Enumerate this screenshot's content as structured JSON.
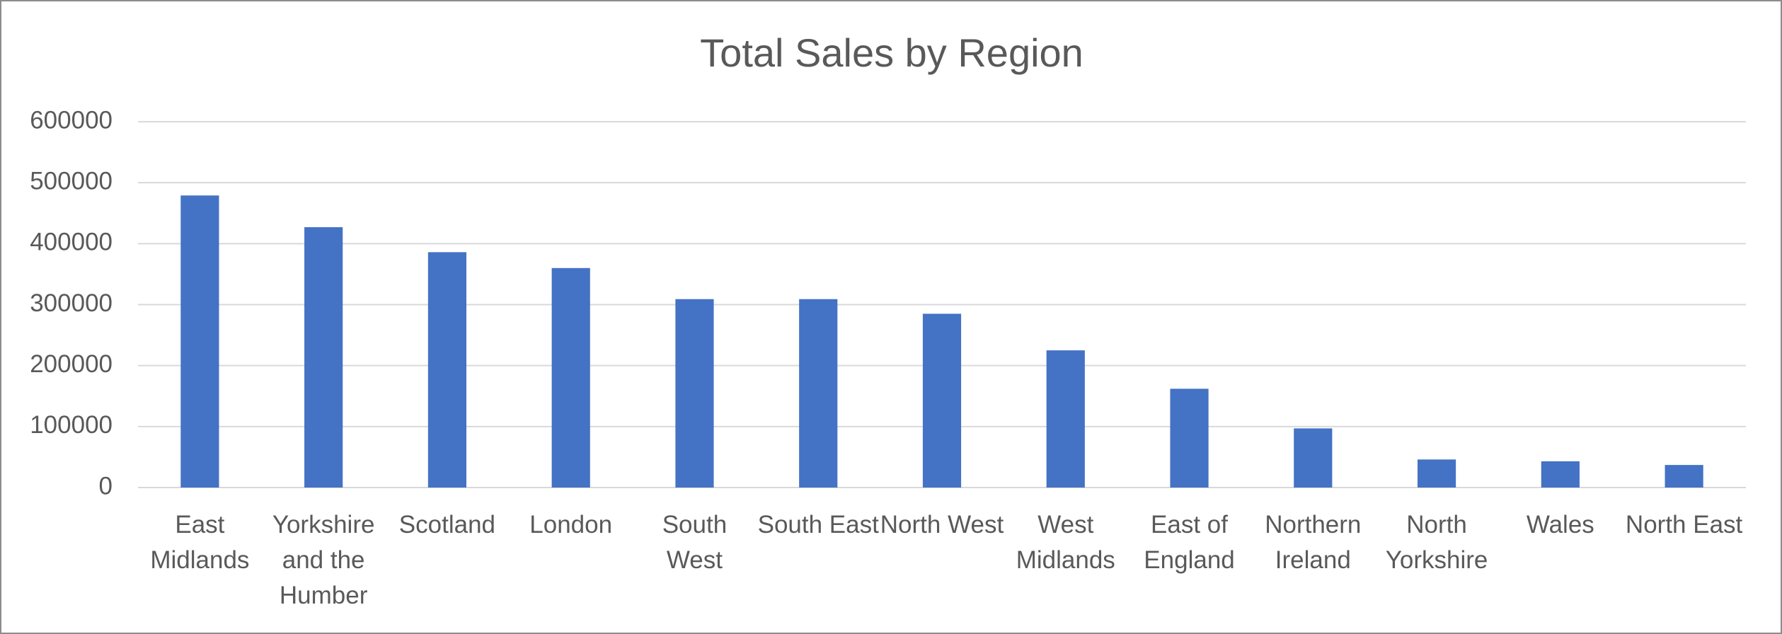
{
  "chart_data": {
    "type": "bar",
    "title": "Total Sales by Region",
    "categories": [
      "East Midlands",
      "Yorkshire and the Humber",
      "Scotland",
      "London",
      "South West",
      "South East",
      "North West",
      "West Midlands",
      "East of England",
      "Northern Ireland",
      "North Yorkshire",
      "Wales",
      "North East"
    ],
    "values": [
      479000,
      427000,
      386000,
      360000,
      309000,
      309000,
      285000,
      225000,
      162000,
      97000,
      46000,
      43000,
      37000
    ],
    "color": "#4472c4",
    "ylim": [
      0,
      600000
    ],
    "yticks": [
      0,
      100000,
      200000,
      300000,
      400000,
      500000,
      600000
    ],
    "grid": true
  }
}
